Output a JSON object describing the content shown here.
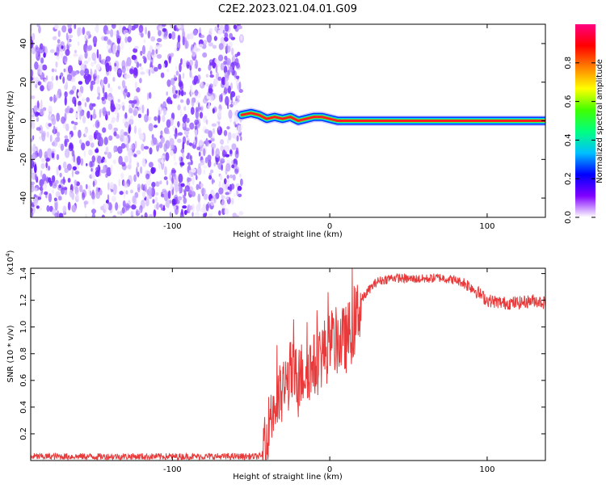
{
  "figure": {
    "title": "C2E2.2023.021.04.01.G09"
  },
  "chart_data": [
    {
      "type": "heatmap",
      "title": "C2E2.2023.021.04.01.G09",
      "xlabel": "Height of straight line (km)",
      "ylabel": "Frequency (Hz)",
      "xlim": [
        -190,
        137
      ],
      "ylim": [
        -50,
        50
      ],
      "x_ticks": [
        "-100",
        "0",
        "100"
      ],
      "y_ticks": [
        "40",
        "20",
        "0",
        "-20",
        "-40"
      ],
      "grid": false,
      "noise_region": {
        "x_range": [
          -190,
          -56
        ],
        "note_amplitude": "0.1-0.5"
      },
      "signal_trace": {
        "x": [
          -56,
          -50,
          -45,
          -40,
          -35,
          -30,
          -25,
          -20,
          -15,
          -10,
          -5,
          0,
          5,
          10,
          20,
          40,
          60,
          80,
          100,
          120,
          137
        ],
        "freq_hz": [
          3,
          4,
          3,
          1,
          2,
          1,
          2,
          0,
          1,
          2,
          2,
          1,
          0,
          0,
          0,
          0,
          0,
          0,
          0,
          0,
          0
        ]
      },
      "colorbar": {
        "label": "Normalized spectral amplitude",
        "ticks": [
          "0.0",
          "0.2",
          "0.4",
          "0.6",
          "0.8"
        ],
        "range": [
          0,
          1
        ],
        "colors": [
          "#ffffff",
          "#8000ff",
          "#0000ff",
          "#00c0ff",
          "#00ff80",
          "#40ff00",
          "#ffff00",
          "#ff8000",
          "#ff0000",
          "#ff0080"
        ]
      }
    },
    {
      "type": "line",
      "xlabel": "Height of straight line (km)",
      "ylabel": "SNR (10 * v/v)",
      "y_multiplier_label": "(x10",
      "y_multiplier_exp": "4",
      "xlim": [
        -190,
        137
      ],
      "ylim": [
        0,
        14400
      ],
      "x_ticks": [
        "-100",
        "0",
        "100"
      ],
      "y_ticks": [
        "0.2",
        "0.4",
        "0.6",
        "0.8",
        "1.0",
        "1.2",
        "1.4"
      ],
      "grid": false,
      "series": [
        {
          "color": "#e83a3a",
          "x": [
            -190,
            -100,
            -50,
            -43,
            -40,
            -38,
            -35,
            -30,
            -25,
            -20,
            -15,
            -10,
            -5,
            0,
            5,
            10,
            15,
            20,
            25,
            30,
            40,
            50,
            60,
            70,
            80,
            85,
            90,
            95,
            100,
            110,
            120,
            130,
            137
          ],
          "values": [
            300,
            300,
            300,
            300,
            1000,
            3500,
            4000,
            5000,
            6500,
            6000,
            7000,
            7000,
            8000,
            8500,
            9000,
            9000,
            10000,
            12000,
            12800,
            13400,
            13700,
            13600,
            13600,
            13700,
            13500,
            13300,
            13000,
            12500,
            12000,
            11800,
            11800,
            12000,
            11800
          ]
        }
      ]
    }
  ]
}
